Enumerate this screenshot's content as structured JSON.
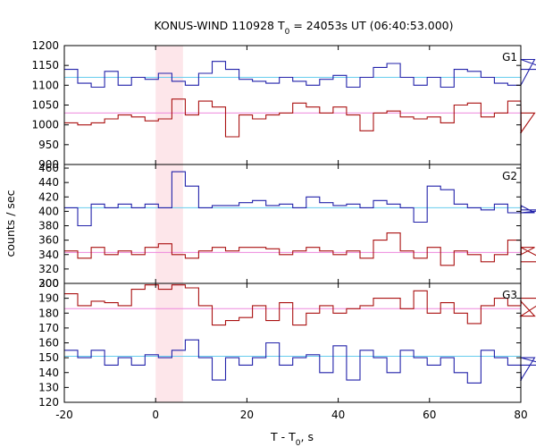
{
  "chart_data": {
    "type": "line",
    "title": "KONUS-WIND 110928 T",
    "title_sub": "0",
    "title_rest": " = 24053s UT (06:40:53.000)",
    "xlabel": "T - T",
    "xlabel_sub": "0",
    "xlabel_rest": ", s",
    "ylabel": "counts / sec",
    "xlim": [
      -20,
      80
    ],
    "x_ticks": [
      -20,
      0,
      20,
      40,
      60,
      80
    ],
    "highlight_interval": [
      0,
      6
    ],
    "highlight_color": "#fde6ea",
    "panels": [
      {
        "name": "G1",
        "ylim": [
          900,
          1200
        ],
        "y_ticks": [
          900,
          950,
          1000,
          1050,
          1100,
          1150,
          1200
        ],
        "series": [
          {
            "color": "#2222aa",
            "step_width": 2.944,
            "x_start": -20,
            "values": [
              1140,
              1105,
              1095,
              1135,
              1100,
              1120,
              1115,
              1130,
              1110,
              1100,
              1130,
              1160,
              1140,
              1115,
              1110,
              1105,
              1120,
              1110,
              1100,
              1115,
              1125,
              1095,
              1120,
              1145,
              1155,
              1120,
              1100,
              1120,
              1095,
              1140,
              1135,
              1120,
              1105,
              1100,
              1100,
              1165,
              1140
            ],
            "background": 1120,
            "background_color": "#66ccee"
          },
          {
            "color": "#aa1111",
            "step_width": 2.944,
            "x_start": -20,
            "values": [
              1005,
              1000,
              1005,
              1015,
              1025,
              1020,
              1010,
              1015,
              1065,
              1025,
              1060,
              1045,
              970,
              1025,
              1015,
              1025,
              1030,
              1055,
              1045,
              1030,
              1045,
              1025,
              985,
              1030,
              1035,
              1020,
              1015,
              1020,
              1005,
              1050,
              1055,
              1020,
              1030,
              1060,
              980,
              1030
            ],
            "background": 1030,
            "background_color": "#ee88dd"
          }
        ]
      },
      {
        "name": "G2",
        "ylim": [
          300,
          465
        ],
        "y_ticks": [
          300,
          320,
          340,
          360,
          380,
          400,
          420,
          440,
          460
        ],
        "series": [
          {
            "color": "#2222aa",
            "step_width": 2.944,
            "x_start": -20,
            "values": [
              405,
              380,
              410,
              405,
              410,
              405,
              410,
              405,
              455,
              435,
              405,
              408,
              408,
              412,
              415,
              408,
              410,
              405,
              420,
              412,
              408,
              410,
              405,
              415,
              410,
              405,
              385,
              435,
              430,
              410,
              405,
              402,
              410,
              398,
              408,
              398,
              402
            ],
            "background": 405,
            "background_color": "#66ccee"
          },
          {
            "color": "#aa1111",
            "step_width": 2.944,
            "x_start": -20,
            "values": [
              345,
              335,
              350,
              340,
              345,
              340,
              350,
              355,
              340,
              335,
              345,
              350,
              345,
              350,
              350,
              348,
              340,
              345,
              350,
              345,
              340,
              345,
              335,
              360,
              370,
              345,
              335,
              350,
              325,
              345,
              340,
              330,
              340,
              360,
              340,
              350,
              330
            ],
            "background": 343,
            "background_color": "#ee88dd"
          }
        ]
      },
      {
        "name": "G3",
        "ylim": [
          120,
          200
        ],
        "y_ticks": [
          120,
          130,
          140,
          150,
          160,
          170,
          180,
          190,
          200
        ],
        "series": [
          {
            "color": "#aa1111",
            "step_width": 2.944,
            "x_start": -20,
            "values": [
              193,
              185,
              188,
              187,
              185,
              196,
              199,
              196,
              199,
              197,
              185,
              172,
              175,
              177,
              185,
              175,
              187,
              172,
              180,
              185,
              180,
              183,
              185,
              190,
              190,
              183,
              195,
              180,
              187,
              180,
              173,
              185,
              190,
              185,
              188,
              178,
              190
            ],
            "background": 183,
            "background_color": "#ee88dd"
          },
          {
            "color": "#2222aa",
            "step_width": 2.944,
            "x_start": -20,
            "values": [
              155,
              150,
              155,
              145,
              150,
              145,
              152,
              150,
              155,
              162,
              150,
              135,
              150,
              145,
              150,
              160,
              145,
              150,
              152,
              140,
              158,
              135,
              155,
              150,
              140,
              155,
              150,
              145,
              150,
              140,
              133,
              155,
              150,
              145,
              135,
              150,
              145
            ],
            "background": 151,
            "background_color": "#66ccee"
          }
        ]
      }
    ]
  }
}
